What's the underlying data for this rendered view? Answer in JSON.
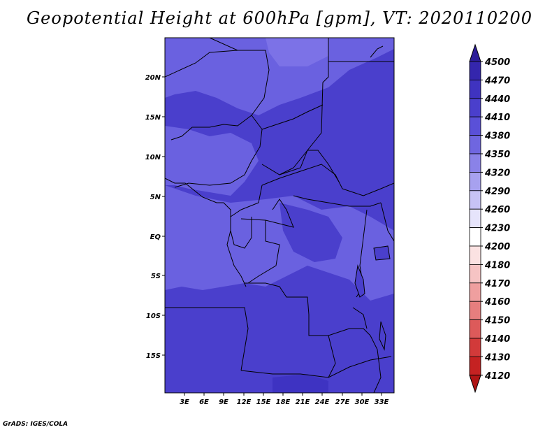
{
  "title": "Geopotential Height at 600hPa [gpm], VT: 2020110200",
  "footer": "GrADS: IGES/COLA",
  "map": {
    "lat_labels": [
      "20N",
      "15N",
      "10N",
      "5N",
      "EQ",
      "5S",
      "10S",
      "15S"
    ],
    "lon_labels": [
      "3E",
      "6E",
      "9E",
      "12E",
      "15E",
      "18E",
      "21E",
      "24E",
      "27E",
      "30E",
      "33E"
    ],
    "fill_color": "#4a3fcc",
    "light_color": "#6a61e0",
    "lighter_color": "#8479eb",
    "border_color": "#000000"
  },
  "colorbar": {
    "labels": [
      "4500",
      "4470",
      "4440",
      "4410",
      "4380",
      "4350",
      "4320",
      "4290",
      "4260",
      "4230",
      "4200",
      "4180",
      "4170",
      "4160",
      "4150",
      "4140",
      "4130",
      "4120"
    ],
    "colors": [
      "#2c1d99",
      "#3426ad",
      "#3f33c0",
      "#4a3fcc",
      "#5a50d8",
      "#6f66e0",
      "#8a82e8",
      "#a7a1ef",
      "#c7c3f5",
      "#e6e4fb",
      "#ffffff",
      "#fbe2e2",
      "#f6c4c4",
      "#ef9f9f",
      "#e67e7e",
      "#dd5a5a",
      "#d23a3a",
      "#c52222",
      "#b01515"
    ]
  }
}
